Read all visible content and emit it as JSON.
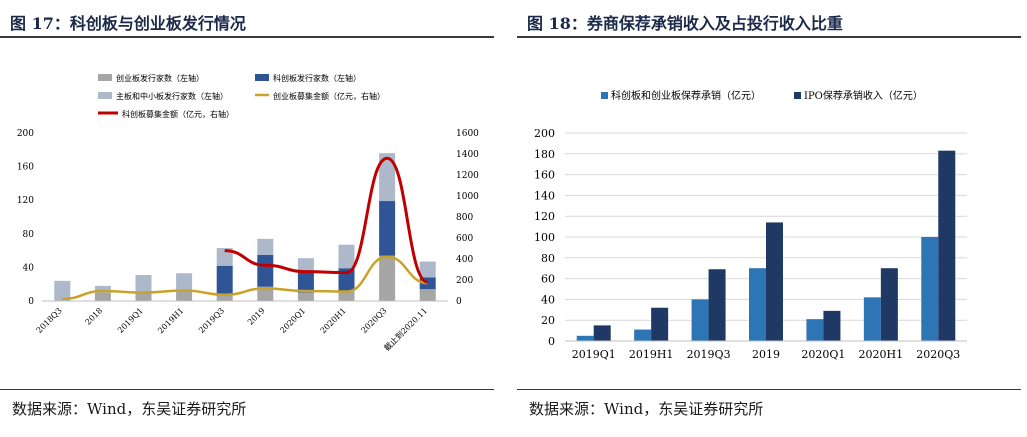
{
  "left": {
    "title": "图 17：科创板与创业板发行情况",
    "source": "数据来源：Wind，东吴证券研究所",
    "chart_data": {
      "type": "bar",
      "stacked": true,
      "categories": [
        "2018Q3",
        "2018",
        "2019Q1",
        "2019H1",
        "2019Q3",
        "2019",
        "2020Q1",
        "2020H1",
        "2020Q3",
        "截止到2020.11"
      ],
      "ylim_left": [
        0,
        200
      ],
      "yticks_left": [
        0,
        40,
        80,
        120,
        160,
        200
      ],
      "ylim_right": [
        0,
        1600
      ],
      "yticks_right": [
        0,
        200,
        400,
        600,
        800,
        1000,
        1200,
        1400,
        1600
      ],
      "series": [
        {
          "name": "创业板发行家数（左轴）",
          "kind": "bar",
          "color": "#a6a6a6",
          "values": [
            0,
            10,
            9,
            11,
            8,
            17,
            10,
            12,
            54,
            14
          ]
        },
        {
          "name": "科创板发行家数（左轴）",
          "kind": "bar",
          "color": "#2f5597",
          "values": [
            0,
            0,
            0,
            0,
            34,
            38,
            26,
            27,
            65,
            14
          ]
        },
        {
          "name": "主板和中小板发行家数（左轴）",
          "kind": "bar",
          "color": "#adb9ca",
          "values": [
            24,
            8,
            22,
            22,
            21,
            19,
            15,
            28,
            57,
            19
          ]
        },
        {
          "name": "创业板募集金额（亿元，右轴）",
          "kind": "line",
          "color": "#c9a227",
          "values": [
            20,
            95,
            80,
            100,
            60,
            120,
            95,
            90,
            420,
            170
          ]
        },
        {
          "name": "科创板募集金额（亿元，右轴）",
          "kind": "line",
          "color": "#c00000",
          "values": [
            null,
            null,
            null,
            null,
            480,
            340,
            280,
            270,
            1360,
            180
          ]
        }
      ],
      "grid": false,
      "legend": "top"
    }
  },
  "right": {
    "title": "图 18：券商保荐承销收入及占投行收入比重",
    "source": "数据来源：Wind，东吴证券研究所",
    "chart_data": {
      "type": "bar",
      "categories": [
        "2019Q1",
        "2019H1",
        "2019Q3",
        "2019",
        "2020Q1",
        "2020H1",
        "2020Q3"
      ],
      "ylim": [
        0,
        200
      ],
      "yticks": [
        0,
        20,
        40,
        60,
        80,
        100,
        120,
        140,
        160,
        180,
        200
      ],
      "series": [
        {
          "name": "科创板和创业板保荐承销（亿元）",
          "color": "#2e75b6",
          "values": [
            5,
            11,
            40,
            70,
            21,
            42,
            100
          ]
        },
        {
          "name": "IPO保荐承销收入（亿元）",
          "color": "#1f3864",
          "values": [
            15,
            32,
            69,
            114,
            29,
            70,
            183
          ]
        }
      ],
      "grid": true,
      "legend": "top"
    }
  }
}
